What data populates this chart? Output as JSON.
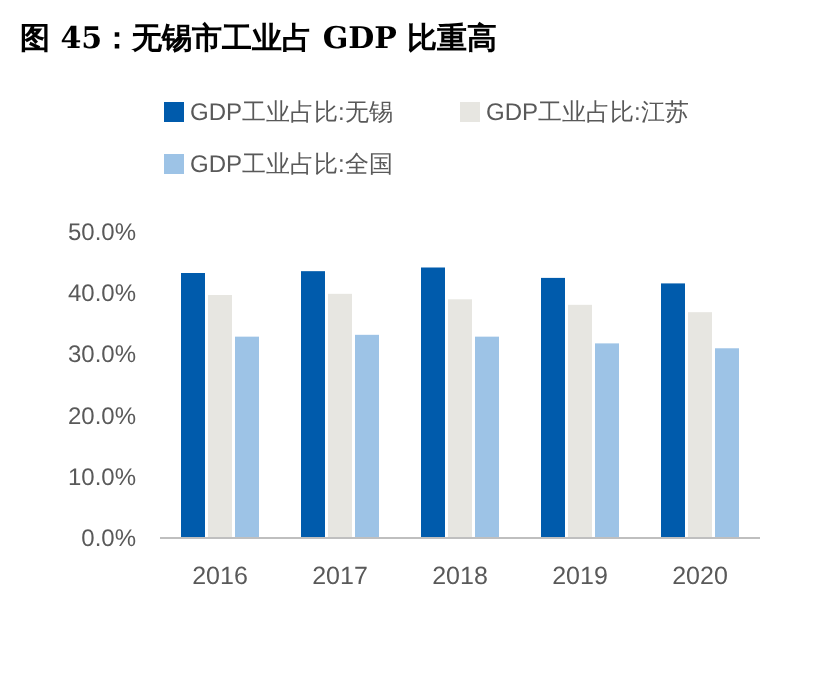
{
  "chart_data": {
    "type": "bar",
    "title": "图 45：无锡市工业占 GDP 比重高",
    "categories": [
      "2016",
      "2017",
      "2018",
      "2019",
      "2020"
    ],
    "series": [
      {
        "name": "GDP工业占比:无锡",
        "color": "#005bac",
        "values": [
          43.3,
          43.6,
          44.2,
          42.5,
          41.6
        ]
      },
      {
        "name": "GDP工业占比:江苏",
        "color": "#e7e6e1",
        "values": [
          39.7,
          39.9,
          39.0,
          38.1,
          36.9
        ]
      },
      {
        "name": "GDP工业占比:全国",
        "color": "#9dc3e6",
        "values": [
          32.9,
          33.2,
          32.9,
          31.8,
          31.0
        ]
      }
    ],
    "ylim": [
      0,
      50
    ],
    "yticks": [
      {
        "value": 0,
        "label": "0.0%"
      },
      {
        "value": 10,
        "label": "10.0%"
      },
      {
        "value": 20,
        "label": "20.0%"
      },
      {
        "value": 30,
        "label": "30.0%"
      },
      {
        "value": 40,
        "label": "40.0%"
      },
      {
        "value": 50,
        "label": "50.0%"
      }
    ],
    "grid": false,
    "legend": "top"
  }
}
